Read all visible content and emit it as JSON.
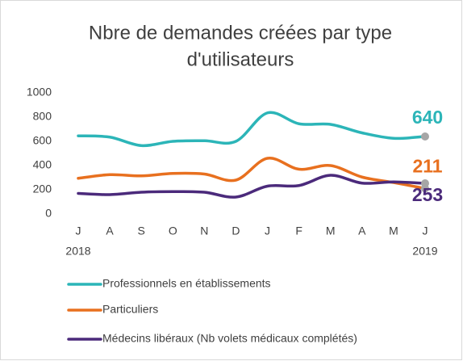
{
  "chart_data": {
    "type": "line",
    "title": [
      "Nbre de demandes créées par type",
      "d'utilisateurs"
    ],
    "categories": [
      "J",
      "A",
      "S",
      "O",
      "N",
      "D",
      "J",
      "F",
      "M",
      "A",
      "M",
      "J"
    ],
    "years": [
      "2018",
      null,
      null,
      null,
      null,
      null,
      null,
      null,
      null,
      null,
      null,
      "2019"
    ],
    "series": [
      {
        "name": "Professionnels en établissements",
        "color": "#2cb5b8",
        "values": [
          645,
          635,
          565,
          600,
          605,
          600,
          835,
          745,
          740,
          670,
          625,
          640
        ]
      },
      {
        "name": "Particuliers",
        "color": "#e8701f",
        "values": [
          295,
          325,
          315,
          335,
          330,
          280,
          460,
          370,
          400,
          305,
          260,
          211
        ]
      },
      {
        "name": "Médecins libéraux (Nb volets médicaux complétés)",
        "color": "#4b2a7b",
        "values": [
          170,
          160,
          180,
          185,
          180,
          140,
          230,
          235,
          320,
          255,
          265,
          253
        ]
      }
    ],
    "ylim": [
      0,
      1000
    ],
    "yticks": [
      0,
      200,
      400,
      600,
      800,
      1000
    ],
    "grid": false
  }
}
